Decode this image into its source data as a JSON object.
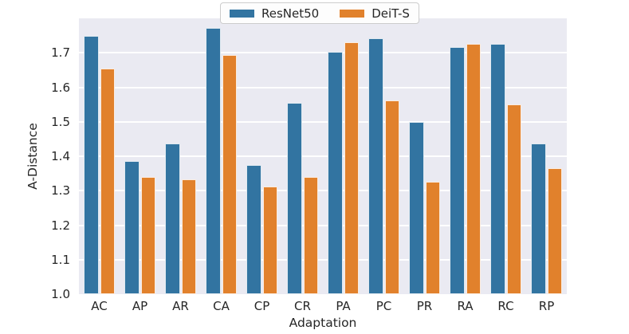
{
  "chart_data": {
    "type": "bar",
    "title": "",
    "xlabel": "Adaptation",
    "ylabel": "A-Distance",
    "categories": [
      "AC",
      "AP",
      "AR",
      "CA",
      "CP",
      "CR",
      "PA",
      "PC",
      "PR",
      "RA",
      "RC",
      "RP"
    ],
    "series": [
      {
        "name": "ResNet50",
        "color": "#3274a1",
        "values": [
          1.75,
          1.385,
          1.437,
          1.772,
          1.375,
          1.556,
          1.702,
          1.743,
          1.5,
          1.717,
          1.726,
          1.437
        ]
      },
      {
        "name": "DeiT-S",
        "color": "#e1812c",
        "values": [
          1.655,
          1.341,
          1.332,
          1.694,
          1.312,
          1.341,
          1.73,
          1.561,
          1.325,
          1.727,
          1.55,
          1.365
        ]
      }
    ],
    "ylim": [
      1.0,
      1.8
    ],
    "yticks": [
      1.0,
      1.1,
      1.2,
      1.3,
      1.4,
      1.5,
      1.6,
      1.7
    ],
    "ytick_labels": [
      "1.0",
      "1.1",
      "1.2",
      "1.3",
      "1.4",
      "1.5",
      "1.6",
      "1.7"
    ],
    "grid": true,
    "grid_color": "#ffffff",
    "plot_background": "#eaeaf2",
    "figure_background": "#ffffff",
    "text_color": "#262626",
    "legend_position": "top-center",
    "legend_labels": [
      "ResNet50",
      "DeiT-S"
    ]
  }
}
